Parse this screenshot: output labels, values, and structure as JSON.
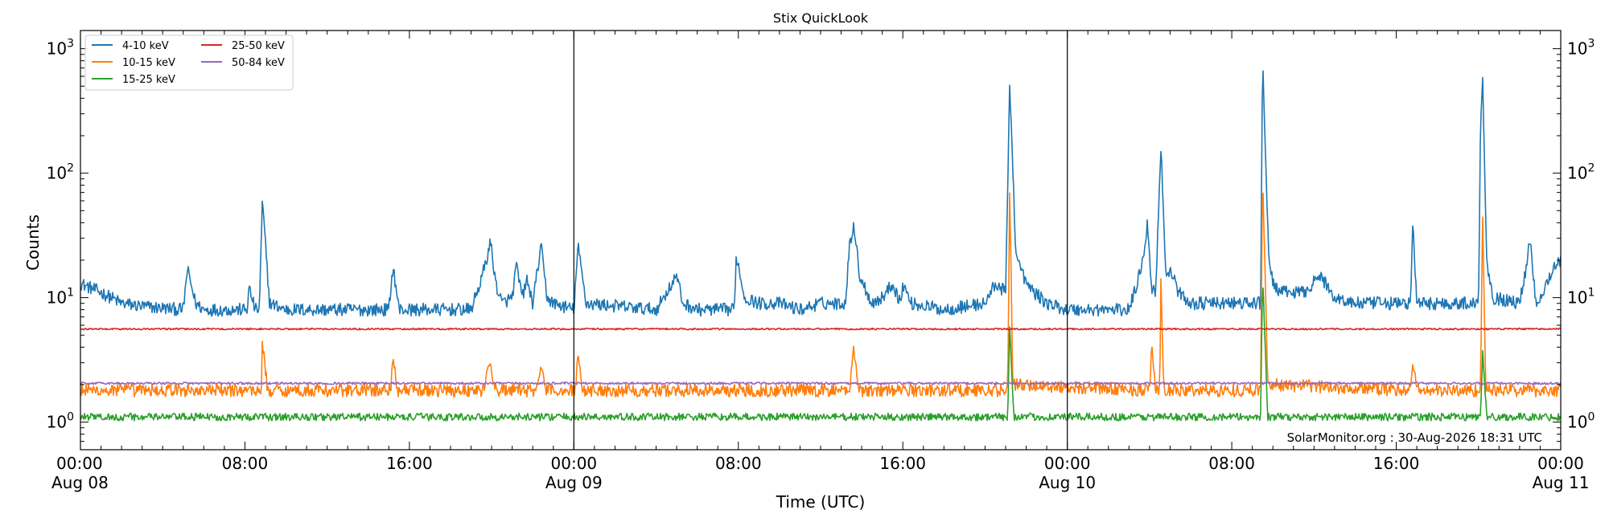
{
  "chart_data": {
    "type": "line",
    "title": "Stix QuickLook",
    "xlabel": "Time (UTC)",
    "ylabel": "Counts",
    "yscale": "log",
    "ylim": [
      0.6,
      1400
    ],
    "xlim_hours": [
      0,
      72
    ],
    "yticks": [
      {
        "value": 1,
        "base": "10",
        "exp": "0"
      },
      {
        "value": 10,
        "base": "10",
        "exp": "1"
      },
      {
        "value": 100,
        "base": "10",
        "exp": "2"
      },
      {
        "value": 1000,
        "base": "10",
        "exp": "3"
      }
    ],
    "xticks": [
      {
        "hour": 0,
        "time": "00:00",
        "date": "Aug 08"
      },
      {
        "hour": 8,
        "time": "08:00",
        "date": ""
      },
      {
        "hour": 16,
        "time": "16:00",
        "date": ""
      },
      {
        "hour": 24,
        "time": "00:00",
        "date": "Aug 09"
      },
      {
        "hour": 32,
        "time": "08:00",
        "date": ""
      },
      {
        "hour": 40,
        "time": "16:00",
        "date": ""
      },
      {
        "hour": 48,
        "time": "00:00",
        "date": "Aug 10"
      },
      {
        "hour": 56,
        "time": "08:00",
        "date": ""
      },
      {
        "hour": 64,
        "time": "16:00",
        "date": ""
      },
      {
        "hour": 72,
        "time": "00:00",
        "date": "Aug 11"
      }
    ],
    "day_dividers_hours": [
      24,
      48
    ],
    "legend_position": "top-left",
    "annotation": "SolarMonitor.org : 30-Aug-2026 18:31 UTC",
    "series": [
      {
        "name": "4-10 keV",
        "color": "#1f77b4",
        "noise": 0.12,
        "points": [
          [
            0,
            13
          ],
          [
            1,
            11
          ],
          [
            1.5,
            10
          ],
          [
            2,
            9
          ],
          [
            3,
            8.5
          ],
          [
            5,
            8
          ],
          [
            5.2,
            17
          ],
          [
            5.6,
            9
          ],
          [
            6,
            8
          ],
          [
            8.1,
            8
          ],
          [
            8.2,
            12
          ],
          [
            8.5,
            8
          ],
          [
            8.7,
            8
          ],
          [
            8.85,
            60
          ],
          [
            9.2,
            9
          ],
          [
            10,
            8
          ],
          [
            15,
            8
          ],
          [
            15.2,
            18
          ],
          [
            15.5,
            8
          ],
          [
            19,
            8
          ],
          [
            19.5,
            14
          ],
          [
            19.8,
            22
          ],
          [
            19.95,
            28
          ],
          [
            20.2,
            13
          ],
          [
            20.5,
            9
          ],
          [
            21,
            10
          ],
          [
            21.2,
            18
          ],
          [
            21.5,
            10
          ],
          [
            21.7,
            14
          ],
          [
            22,
            9
          ],
          [
            22.4,
            26
          ],
          [
            22.7,
            10
          ],
          [
            23,
            9
          ],
          [
            24,
            8
          ],
          [
            24.2,
            26
          ],
          [
            24.6,
            9
          ],
          [
            28,
            8
          ],
          [
            29,
            15
          ],
          [
            29.3,
            9
          ],
          [
            30,
            8
          ],
          [
            31.8,
            8
          ],
          [
            31.9,
            22
          ],
          [
            32.3,
            10
          ],
          [
            33,
            9
          ],
          [
            34,
            9
          ],
          [
            35,
            8
          ],
          [
            36,
            9
          ],
          [
            37.2,
            9
          ],
          [
            37.4,
            25
          ],
          [
            37.6,
            40
          ],
          [
            37.9,
            15
          ],
          [
            38.5,
            9
          ],
          [
            39,
            10
          ],
          [
            39.5,
            13
          ],
          [
            39.9,
            9
          ],
          [
            40,
            13
          ],
          [
            40.4,
            9
          ],
          [
            42,
            8
          ],
          [
            44,
            9
          ],
          [
            44.5,
            13
          ],
          [
            45,
            11
          ],
          [
            45.2,
            550
          ],
          [
            45.5,
            22
          ],
          [
            46,
            13
          ],
          [
            46.4,
            11
          ],
          [
            47,
            9
          ],
          [
            48,
            8
          ],
          [
            51,
            8
          ],
          [
            51.4,
            13
          ],
          [
            51.7,
            22
          ],
          [
            51.9,
            40
          ],
          [
            52.1,
            12
          ],
          [
            52.3,
            11
          ],
          [
            52.55,
            170
          ],
          [
            52.8,
            15
          ],
          [
            53.1,
            16
          ],
          [
            53.4,
            11
          ],
          [
            54,
            9
          ],
          [
            57.4,
            9
          ],
          [
            57.5,
            870
          ],
          [
            57.8,
            20
          ],
          [
            58,
            13
          ],
          [
            58.4,
            11
          ],
          [
            59.5,
            11
          ],
          [
            60.3,
            15
          ],
          [
            61,
            10
          ],
          [
            62,
            9
          ],
          [
            64.7,
            9
          ],
          [
            64.8,
            40
          ],
          [
            65,
            9
          ],
          [
            68,
            9
          ],
          [
            68.1,
            250
          ],
          [
            68.2,
            620
          ],
          [
            68.4,
            20
          ],
          [
            68.7,
            10
          ],
          [
            70,
            9
          ],
          [
            70.3,
            17
          ],
          [
            70.5,
            30
          ],
          [
            70.8,
            9
          ],
          [
            71,
            10
          ],
          [
            71.7,
            18
          ],
          [
            72,
            20
          ]
        ]
      },
      {
        "name": "10-15 keV",
        "color": "#ff7f0e",
        "noise": 0.12,
        "points": [
          [
            0,
            1.8
          ],
          [
            8.8,
            1.8
          ],
          [
            8.85,
            4.5
          ],
          [
            9.1,
            1.8
          ],
          [
            15.1,
            1.8
          ],
          [
            15.2,
            3.8
          ],
          [
            15.4,
            1.8
          ],
          [
            19.6,
            1.8
          ],
          [
            19.9,
            3.0
          ],
          [
            20.2,
            1.8
          ],
          [
            22.2,
            1.8
          ],
          [
            22.4,
            3.0
          ],
          [
            22.6,
            1.8
          ],
          [
            24.1,
            1.8
          ],
          [
            24.2,
            4.0
          ],
          [
            24.4,
            1.8
          ],
          [
            37.4,
            1.8
          ],
          [
            37.6,
            3.8
          ],
          [
            37.9,
            1.8
          ],
          [
            45.1,
            1.8
          ],
          [
            45.2,
            80
          ],
          [
            45.35,
            2.0
          ],
          [
            52,
            1.8
          ],
          [
            52.1,
            4.0
          ],
          [
            52.3,
            1.8
          ],
          [
            52.5,
            1.8
          ],
          [
            52.55,
            13
          ],
          [
            52.7,
            1.8
          ],
          [
            57.4,
            1.8
          ],
          [
            57.5,
            110
          ],
          [
            57.75,
            2.0
          ],
          [
            64.7,
            1.8
          ],
          [
            64.8,
            3.2
          ],
          [
            65,
            1.8
          ],
          [
            68.1,
            1.8
          ],
          [
            68.2,
            55
          ],
          [
            68.35,
            1.8
          ],
          [
            72,
            1.8
          ]
        ]
      },
      {
        "name": "15-25 keV",
        "color": "#2ca02c",
        "noise": 0.07,
        "points": [
          [
            0,
            1.1
          ],
          [
            45.1,
            1.1
          ],
          [
            45.2,
            6.0
          ],
          [
            45.4,
            1.1
          ],
          [
            57.4,
            1.1
          ],
          [
            57.5,
            15
          ],
          [
            57.75,
            1.1
          ],
          [
            68.1,
            1.1
          ],
          [
            68.2,
            3.8
          ],
          [
            68.4,
            1.1
          ],
          [
            72,
            1.1
          ]
        ]
      },
      {
        "name": "25-50 keV",
        "color": "#d62728",
        "noise": 0.015,
        "points": [
          [
            0,
            5.6
          ],
          [
            72,
            5.6
          ]
        ]
      },
      {
        "name": "50-84 keV",
        "color": "#9467bd",
        "noise": 0.02,
        "points": [
          [
            0,
            2.05
          ],
          [
            72,
            2.05
          ]
        ]
      }
    ]
  }
}
